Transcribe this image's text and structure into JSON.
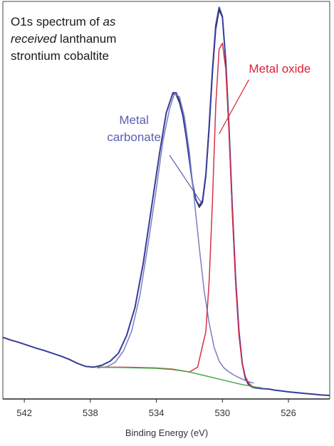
{
  "chart_data": {
    "type": "line",
    "title": {
      "line1": "O1s spectrum of ",
      "line1_italic": "as",
      "line2_italic": "received",
      "line2": " lanthanum",
      "line3": "strontium cobaltite"
    },
    "xlabel": "Binding Energy (eV)",
    "ylabel": "",
    "x_reversed": true,
    "xlim": [
      543.3,
      523.5
    ],
    "ylim": [
      0,
      1
    ],
    "xticks": [
      542,
      538,
      534,
      530,
      526
    ],
    "xtick_labels": [
      "542",
      "538",
      "534",
      "530",
      "526"
    ],
    "grid": false,
    "annotations": [
      {
        "lines": [
          "Metal oxide"
        ],
        "color": "#d6243a",
        "x_from": 528.4,
        "y_from": 0.803,
        "x_to": 530.2,
        "y_to": 0.667
      },
      {
        "lines": [
          "Metal",
          "carbonate"
        ],
        "color": "#5a5fb0",
        "x_from": 533.2,
        "y_from": 0.613,
        "x_to": 531.2,
        "y_to": 0.489
      }
    ],
    "series": [
      {
        "color": "#222222",
        "x": [
          543.3,
          542.8,
          542.3,
          541.8,
          541.3,
          540.8,
          540.3,
          539.8,
          539.3,
          538.8,
          538.3,
          537.8,
          537.3,
          536.8,
          536.3,
          535.8,
          535.3,
          534.8,
          534.3,
          533.8,
          533.4,
          533.0,
          532.8,
          532.6,
          532.4,
          532.2,
          532.0,
          531.8,
          531.6,
          531.4,
          531.2,
          531.0,
          530.8,
          530.6,
          530.4,
          530.2,
          530.0,
          529.8,
          529.6,
          529.4,
          529.2,
          529.0,
          528.8,
          528.6,
          528.4,
          528.2,
          528.0,
          527.6,
          527.2,
          526.8,
          526.4,
          526.0,
          525.5,
          525.0,
          524.5,
          524.0,
          523.5
        ],
        "y": [
          0.155,
          0.148,
          0.142,
          0.135,
          0.128,
          0.122,
          0.115,
          0.108,
          0.1,
          0.09,
          0.082,
          0.08,
          0.085,
          0.095,
          0.115,
          0.16,
          0.23,
          0.34,
          0.48,
          0.62,
          0.72,
          0.768,
          0.765,
          0.745,
          0.712,
          0.66,
          0.6,
          0.54,
          0.5,
          0.482,
          0.495,
          0.56,
          0.68,
          0.82,
          0.93,
          0.978,
          0.96,
          0.85,
          0.68,
          0.48,
          0.3,
          0.17,
          0.09,
          0.05,
          0.035,
          0.03,
          0.028,
          0.026,
          0.025,
          0.022,
          0.02,
          0.018,
          0.016,
          0.014,
          0.012,
          0.01,
          0.009
        ]
      },
      {
        "color": "#3a3d9c",
        "x": [
          543.3,
          542.8,
          542.3,
          541.8,
          541.3,
          540.8,
          540.3,
          539.8,
          539.3,
          538.8,
          538.3,
          537.8,
          537.3,
          536.8,
          536.3,
          535.8,
          535.3,
          534.8,
          534.3,
          533.8,
          533.4,
          533.0,
          532.8,
          532.6,
          532.4,
          532.2,
          532.0,
          531.8,
          531.6,
          531.4,
          531.2,
          531.0,
          530.8,
          530.6,
          530.4,
          530.2,
          530.0,
          529.8,
          529.6,
          529.4,
          529.2,
          529.0,
          528.8,
          528.6,
          528.4,
          528.2,
          528.0,
          527.6,
          527.2,
          526.8,
          526.4,
          526.0,
          525.5,
          525.0,
          524.5,
          524.0,
          523.5
        ],
        "y": [
          0.155,
          0.148,
          0.142,
          0.135,
          0.128,
          0.122,
          0.115,
          0.108,
          0.1,
          0.09,
          0.082,
          0.08,
          0.085,
          0.095,
          0.115,
          0.16,
          0.23,
          0.34,
          0.48,
          0.62,
          0.72,
          0.77,
          0.77,
          0.75,
          0.715,
          0.662,
          0.6,
          0.54,
          0.5,
          0.486,
          0.5,
          0.565,
          0.69,
          0.83,
          0.94,
          0.985,
          0.962,
          0.85,
          0.68,
          0.48,
          0.3,
          0.17,
          0.09,
          0.05,
          0.035,
          0.03,
          0.028,
          0.026,
          0.025,
          0.022,
          0.02,
          0.018,
          0.016,
          0.014,
          0.012,
          0.01,
          0.009
        ]
      },
      {
        "color": "#7a7fbf",
        "x": [
          537.6,
          537.0,
          536.5,
          536.0,
          535.5,
          535.0,
          534.5,
          534.0,
          533.6,
          533.2,
          532.9,
          532.6,
          532.3,
          532.0,
          531.7,
          531.4,
          531.1,
          530.8,
          530.5,
          530.2,
          529.9,
          529.6,
          529.3,
          529.0,
          528.7,
          528.4,
          528.1
        ],
        "y": [
          0.078,
          0.081,
          0.092,
          0.12,
          0.17,
          0.26,
          0.39,
          0.53,
          0.65,
          0.73,
          0.768,
          0.76,
          0.71,
          0.62,
          0.5,
          0.38,
          0.27,
          0.19,
          0.13,
          0.095,
          0.078,
          0.068,
          0.06,
          0.054,
          0.048,
          0.043,
          0.04
        ]
      },
      {
        "color": "#d63045",
        "x": [
          537.6,
          536.0,
          535.0,
          534.0,
          533.0,
          532.0,
          531.5,
          531.0,
          530.8,
          530.6,
          530.4,
          530.2,
          530.0,
          529.8,
          529.6,
          529.4,
          529.2,
          529.0,
          528.8,
          528.6,
          528.4,
          528.2,
          528.0
        ],
        "y": [
          0.08,
          0.08,
          0.079,
          0.078,
          0.075,
          0.068,
          0.08,
          0.17,
          0.3,
          0.5,
          0.74,
          0.88,
          0.895,
          0.83,
          0.67,
          0.47,
          0.29,
          0.16,
          0.09,
          0.055,
          0.04,
          0.032,
          0.03
        ]
      },
      {
        "color": "#48a84a",
        "x": [
          537.6,
          536.0,
          534.0,
          533.0,
          532.0,
          531.0,
          530.0,
          529.0,
          528.0,
          527.6
        ],
        "y": [
          0.08,
          0.079,
          0.077,
          0.074,
          0.068,
          0.058,
          0.048,
          0.038,
          0.03,
          0.028
        ]
      }
    ]
  }
}
